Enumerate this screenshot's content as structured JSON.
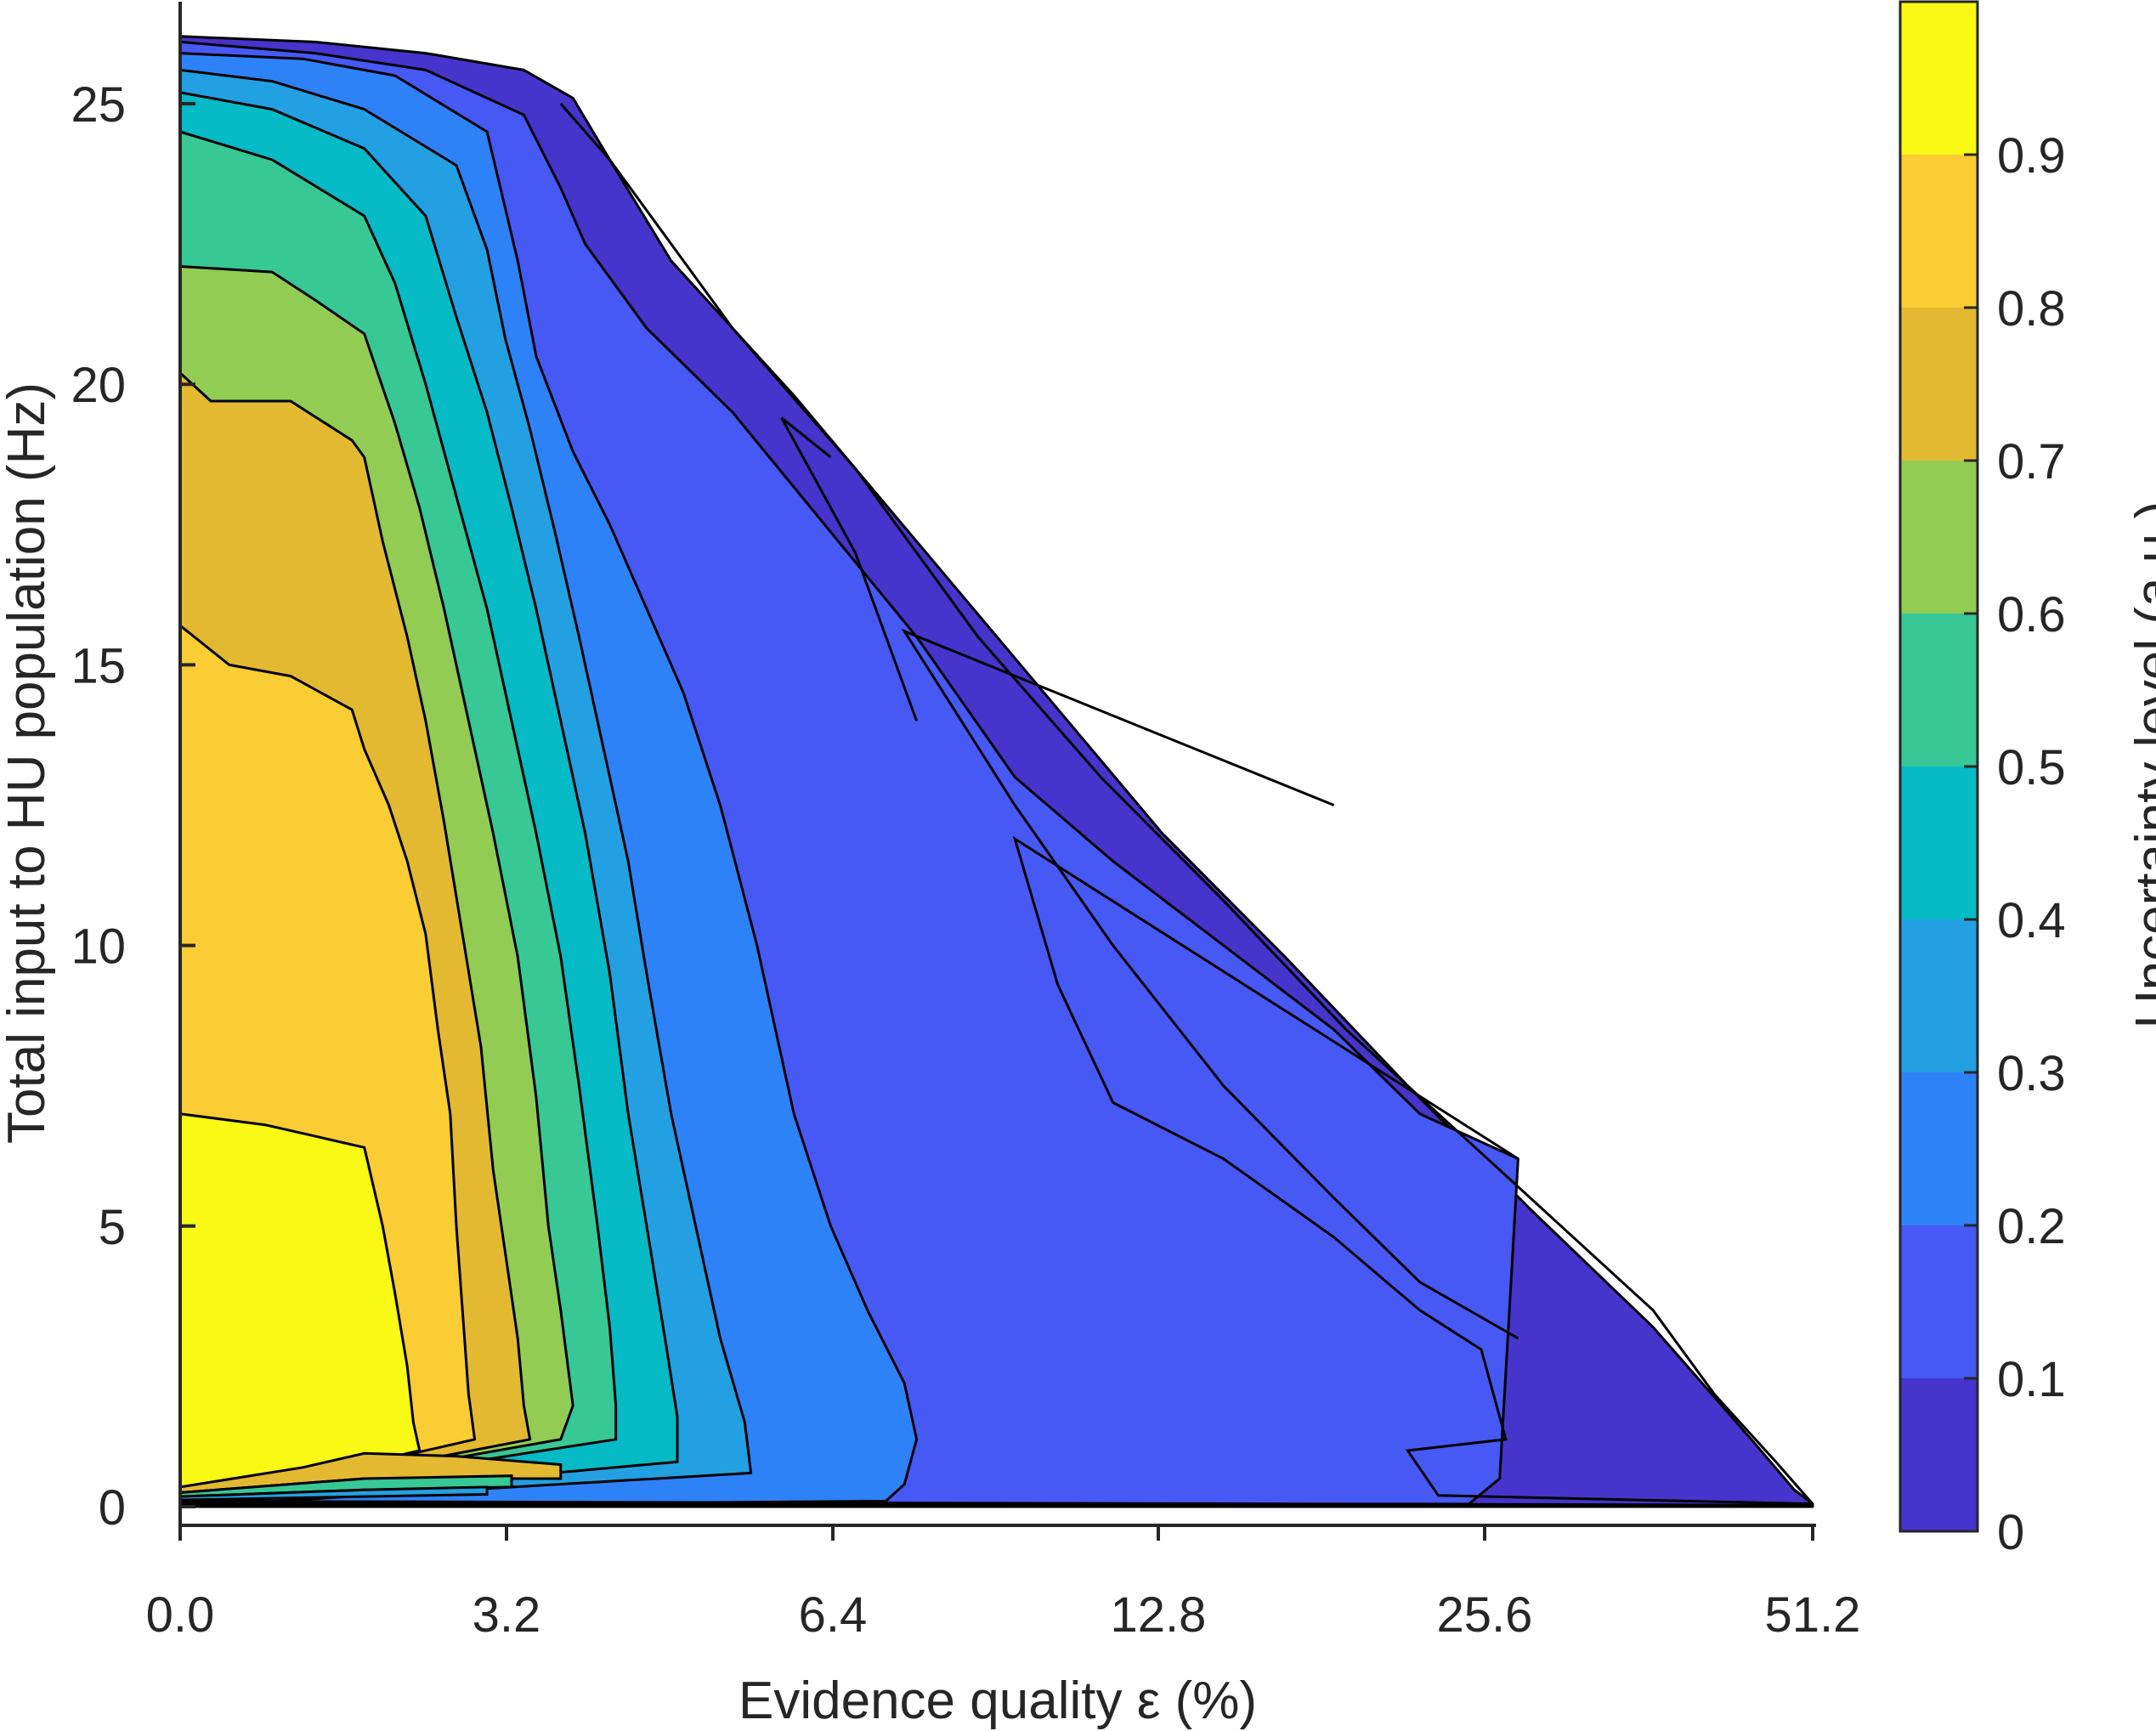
{
  "chart_data": {
    "type": "contour",
    "xlabel": "Evidence quality ε (%)",
    "ylabel": "Total input to HU population (Hz)",
    "x_tick_labels": [
      "0.0",
      "3.2",
      "6.4",
      "12.8",
      "25.6",
      "51.2"
    ],
    "y_ticks": [
      0,
      5,
      10,
      15,
      20,
      25
    ],
    "ylim": [
      -0.5,
      26.5
    ],
    "colorbar": {
      "label": "Uncertainty level (a.u.)",
      "ticks": [
        0,
        0.1,
        0.2,
        0.3,
        0.4,
        0.5,
        0.6,
        0.7,
        0.8,
        0.9
      ],
      "range": [
        0,
        1
      ],
      "levels": [
        {
          "from": 0.0,
          "to": 0.1,
          "color": "#4634cc"
        },
        {
          "from": 0.1,
          "to": 0.2,
          "color": "#4659f5"
        },
        {
          "from": 0.2,
          "to": 0.3,
          "color": "#2e82f8"
        },
        {
          "from": 0.3,
          "to": 0.4,
          "color": "#23a0e2"
        },
        {
          "from": 0.4,
          "to": 0.5,
          "color": "#06bac6"
        },
        {
          "from": 0.5,
          "to": 0.6,
          "color": "#37c895"
        },
        {
          "from": 0.6,
          "to": 0.7,
          "color": "#92cc53"
        },
        {
          "from": 0.7,
          "to": 0.8,
          "color": "#e3b932"
        },
        {
          "from": 0.8,
          "to": 0.9,
          "color": "#f9cd33"
        },
        {
          "from": 0.9,
          "to": 1.0,
          "color": "#f8f914"
        }
      ]
    },
    "regions": [
      {
        "level": 0.05,
        "points": [
          [
            0,
            26.2
          ],
          [
            2.2,
            26.1
          ],
          [
            4.0,
            25.9
          ],
          [
            5.6,
            25.6
          ],
          [
            6.4,
            25.1
          ],
          [
            7.0,
            24.0
          ],
          [
            8.0,
            22.2
          ],
          [
            10.0,
            19.8
          ],
          [
            12.0,
            17.2
          ],
          [
            14.0,
            14.6
          ],
          [
            16.0,
            12.0
          ],
          [
            18.0,
            9.8
          ],
          [
            20.0,
            7.5
          ],
          [
            22.0,
            5.3
          ],
          [
            24.0,
            3.2
          ],
          [
            25.6,
            1.2
          ],
          [
            26.3,
            0.3
          ],
          [
            26.6,
            0.05
          ],
          [
            26.6,
            0
          ],
          [
            0,
            0
          ]
        ]
      },
      {
        "level": 0.15,
        "points": [
          [
            0,
            26.1
          ],
          [
            2.2,
            25.9
          ],
          [
            4.0,
            25.6
          ],
          [
            5.6,
            24.8
          ],
          [
            6.2,
            23.5
          ],
          [
            6.6,
            22.5
          ],
          [
            7.6,
            21.0
          ],
          [
            9.0,
            19.5
          ],
          [
            10.5,
            17.5
          ],
          [
            12.0,
            15.5
          ],
          [
            13.6,
            13.0
          ],
          [
            15.2,
            11.5
          ],
          [
            17.0,
            10.0
          ],
          [
            18.8,
            8.5
          ],
          [
            20.2,
            7.0
          ],
          [
            21.8,
            6.2
          ],
          [
            21.5,
            0.5
          ],
          [
            21.0,
            0.05
          ],
          [
            0,
            0
          ]
        ]
      },
      {
        "level": 0.25,
        "points": [
          [
            0,
            25.9
          ],
          [
            2.0,
            25.8
          ],
          [
            3.5,
            25.5
          ],
          [
            5.0,
            24.5
          ],
          [
            5.5,
            22.2
          ],
          [
            5.8,
            20.5
          ],
          [
            6.4,
            18.8
          ],
          [
            7.0,
            17.5
          ],
          [
            7.6,
            16.0
          ],
          [
            8.2,
            14.5
          ],
          [
            8.8,
            12.5
          ],
          [
            9.4,
            10.0
          ],
          [
            10.0,
            7.0
          ],
          [
            10.6,
            5.0
          ],
          [
            11.2,
            3.5
          ],
          [
            11.8,
            2.2
          ],
          [
            12.0,
            1.2
          ],
          [
            11.8,
            0.4
          ],
          [
            11.5,
            0.1
          ],
          [
            0,
            0
          ]
        ]
      },
      {
        "level": 0.35,
        "points": [
          [
            0,
            25.6
          ],
          [
            1.5,
            25.4
          ],
          [
            3.0,
            24.9
          ],
          [
            4.5,
            23.9
          ],
          [
            5.0,
            22.4
          ],
          [
            5.3,
            20.8
          ],
          [
            5.7,
            19.2
          ],
          [
            6.1,
            17.4
          ],
          [
            6.5,
            15.5
          ],
          [
            6.9,
            13.5
          ],
          [
            7.3,
            11.5
          ],
          [
            7.6,
            9.5
          ],
          [
            8.0,
            7.0
          ],
          [
            8.4,
            5.0
          ],
          [
            8.8,
            3.0
          ],
          [
            9.2,
            1.5
          ],
          [
            9.3,
            0.6
          ],
          [
            0,
            0
          ]
        ]
      },
      {
        "level": 0.45,
        "points": [
          [
            0,
            25.2
          ],
          [
            1.5,
            24.9
          ],
          [
            3.0,
            24.2
          ],
          [
            4.0,
            23.0
          ],
          [
            4.5,
            21.2
          ],
          [
            5.0,
            19.5
          ],
          [
            5.4,
            17.8
          ],
          [
            5.8,
            16.0
          ],
          [
            6.2,
            14.0
          ],
          [
            6.6,
            12.0
          ],
          [
            7.0,
            9.5
          ],
          [
            7.3,
            7.0
          ],
          [
            7.6,
            5.0
          ],
          [
            7.9,
            3.0
          ],
          [
            8.1,
            1.6
          ],
          [
            8.1,
            0.8
          ],
          [
            0,
            0
          ]
        ]
      },
      {
        "level": 0.55,
        "points": [
          [
            0,
            24.5
          ],
          [
            1.5,
            24.0
          ],
          [
            3.0,
            23.0
          ],
          [
            3.5,
            21.8
          ],
          [
            4.0,
            20.0
          ],
          [
            4.5,
            18.0
          ],
          [
            5.0,
            16.0
          ],
          [
            5.4,
            14.0
          ],
          [
            5.8,
            12.0
          ],
          [
            6.2,
            9.8
          ],
          [
            6.5,
            7.5
          ],
          [
            6.8,
            5.0
          ],
          [
            7.0,
            3.2
          ],
          [
            7.1,
            1.8
          ],
          [
            7.1,
            1.2
          ],
          [
            0,
            0
          ]
        ]
      },
      {
        "level": 0.65,
        "points": [
          [
            0,
            22.1
          ],
          [
            1.5,
            22.0
          ],
          [
            2.2,
            21.5
          ],
          [
            3.0,
            20.9
          ],
          [
            3.5,
            19.3
          ],
          [
            3.9,
            17.8
          ],
          [
            4.3,
            16.0
          ],
          [
            4.7,
            14.0
          ],
          [
            5.1,
            12.0
          ],
          [
            5.5,
            9.8
          ],
          [
            5.8,
            7.3
          ],
          [
            6.0,
            5.0
          ],
          [
            6.2,
            3.5
          ],
          [
            6.4,
            1.8
          ],
          [
            6.2,
            1.2
          ],
          [
            0,
            0
          ]
        ]
      },
      {
        "level": 0.75,
        "points": [
          [
            0,
            20.2
          ],
          [
            0.5,
            19.7
          ],
          [
            1.8,
            19.7
          ],
          [
            2.8,
            19.0
          ],
          [
            3.0,
            18.7
          ],
          [
            3.3,
            17.2
          ],
          [
            3.7,
            15.5
          ],
          [
            4.0,
            14.0
          ],
          [
            4.3,
            12.2
          ],
          [
            4.6,
            10.2
          ],
          [
            4.9,
            8.2
          ],
          [
            5.1,
            6.0
          ],
          [
            5.3,
            4.5
          ],
          [
            5.5,
            3.0
          ],
          [
            5.6,
            1.8
          ],
          [
            5.7,
            1.2
          ],
          [
            0,
            0
          ]
        ]
      },
      {
        "level": 0.85,
        "points": [
          [
            0,
            15.7
          ],
          [
            0.8,
            15.0
          ],
          [
            1.8,
            14.8
          ],
          [
            2.8,
            14.2
          ],
          [
            3.0,
            13.5
          ],
          [
            3.4,
            12.5
          ],
          [
            3.7,
            11.5
          ],
          [
            4.0,
            10.2
          ],
          [
            4.2,
            8.5
          ],
          [
            4.4,
            7.0
          ],
          [
            4.5,
            5.0
          ],
          [
            4.6,
            3.5
          ],
          [
            4.7,
            2.0
          ],
          [
            4.8,
            1.2
          ],
          [
            0,
            0
          ]
        ]
      },
      {
        "level": 0.95,
        "points": [
          [
            0,
            7.0
          ],
          [
            1.4,
            6.8
          ],
          [
            2.2,
            6.6
          ],
          [
            3.0,
            6.4
          ],
          [
            3.3,
            5.0
          ],
          [
            3.5,
            3.8
          ],
          [
            3.7,
            2.5
          ],
          [
            3.8,
            1.5
          ],
          [
            3.9,
            1.0
          ],
          [
            0,
            0
          ]
        ]
      }
    ],
    "base_bands": [
      {
        "level": 0.75,
        "points": [
          [
            0,
            0.35
          ],
          [
            2.0,
            0.7
          ],
          [
            3.0,
            0.95
          ],
          [
            4.5,
            0.9
          ],
          [
            6.2,
            0.75
          ],
          [
            6.2,
            0.5
          ],
          [
            3.0,
            0.5
          ],
          [
            0,
            0.25
          ]
        ]
      },
      {
        "level": 0.55,
        "points": [
          [
            0,
            0.25
          ],
          [
            3.0,
            0.5
          ],
          [
            5.4,
            0.55
          ],
          [
            5.4,
            0.35
          ],
          [
            3.0,
            0.3
          ],
          [
            0,
            0.18
          ]
        ]
      },
      {
        "level": 0.35,
        "points": [
          [
            0,
            0.18
          ],
          [
            3.0,
            0.3
          ],
          [
            5.0,
            0.35
          ],
          [
            5.0,
            0.22
          ],
          [
            3.0,
            0.18
          ],
          [
            0,
            0.12
          ]
        ]
      }
    ],
    "contour_lines": [
      {
        "level": 0.1,
        "points": [
          [
            21.8,
            6.2
          ],
          [
            13.6,
            11.9
          ],
          [
            14.3,
            9.3
          ],
          [
            15.2,
            7.2
          ],
          [
            17.0,
            6.2
          ],
          [
            18.8,
            4.8
          ],
          [
            20.2,
            3.5
          ],
          [
            21.2,
            2.8
          ],
          [
            21.6,
            1.2
          ],
          [
            20.0,
            1.0
          ],
          [
            20.5,
            0.2
          ],
          [
            26.6,
            0.05
          ]
        ]
      },
      {
        "level": 0.1,
        "points": [
          [
            18.8,
            12.5
          ],
          [
            11.8,
            15.6
          ],
          [
            13.6,
            12.5
          ],
          [
            15.2,
            10.0
          ],
          [
            17.0,
            7.5
          ],
          [
            18.8,
            5.5
          ],
          [
            20.2,
            4.0
          ],
          [
            21.8,
            3.0
          ]
        ]
      },
      {
        "level": 0.2,
        "points": [
          [
            10.6,
            18.7
          ],
          [
            9.8,
            19.4
          ],
          [
            11.0,
            17.0
          ],
          [
            12.0,
            14.0
          ]
        ]
      },
      {
        "level": 0.05,
        "points": [
          [
            6.2,
            25.0
          ],
          [
            7.0,
            24.0
          ],
          [
            9.0,
            21.0
          ],
          [
            11.0,
            18.5
          ],
          [
            13.0,
            15.5
          ],
          [
            15.0,
            13.0
          ],
          [
            17.0,
            10.8
          ],
          [
            19.0,
            8.5
          ],
          [
            21.0,
            6.5
          ],
          [
            22.5,
            5.0
          ],
          [
            24.0,
            3.5
          ],
          [
            25.0,
            2.0
          ],
          [
            26.0,
            0.8
          ],
          [
            26.6,
            0.05
          ]
        ]
      }
    ]
  }
}
